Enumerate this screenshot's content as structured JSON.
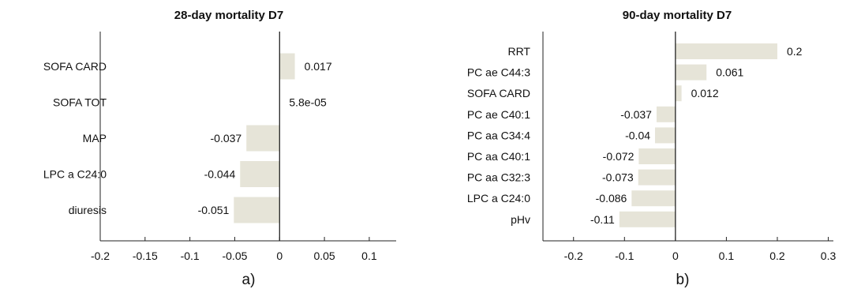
{
  "chart_data": [
    {
      "type": "bar",
      "orientation": "horizontal",
      "title": "28-day mortality D7",
      "panel_label": "a)",
      "categories": [
        "SOFA CARD",
        "SOFA TOT",
        "MAP",
        "LPC a C24:0",
        "diuresis"
      ],
      "values": [
        0.017,
        5.8e-05,
        -0.037,
        -0.044,
        -0.051
      ],
      "value_labels": [
        "0.017",
        "5.8e-05",
        "-0.037",
        "-0.044",
        "-0.051"
      ],
      "xlim": [
        -0.2,
        0.13
      ],
      "xticks": [
        -0.2,
        -0.15,
        -0.1,
        -0.05,
        0,
        0.05,
        0.1
      ],
      "xtick_labels": [
        "-0.2",
        "-0.15",
        "-0.1",
        "-0.05",
        "0",
        "0.05",
        "0.1"
      ],
      "bar_color": "#e6e4d8",
      "grid": false
    },
    {
      "type": "bar",
      "orientation": "horizontal",
      "title": "90-day mortality D7",
      "panel_label": "b)",
      "categories": [
        "RRT",
        "PC ae C44:3",
        "SOFA CARD",
        "PC ae C40:1",
        "PC aa C34:4",
        "PC aa C40:1",
        "PC aa C32:3",
        "LPC a C24:0",
        "pHv"
      ],
      "values": [
        0.2,
        0.061,
        0.012,
        -0.037,
        -0.04,
        -0.072,
        -0.073,
        -0.086,
        -0.11
      ],
      "value_labels": [
        "0.2",
        "0.061",
        "0.012",
        "-0.037",
        "-0.04",
        "-0.072",
        "-0.073",
        "-0.086",
        "-0.11"
      ],
      "xlim": [
        -0.26,
        0.31
      ],
      "xticks": [
        -0.2,
        -0.1,
        0,
        0.1,
        0.2,
        0.3
      ],
      "xtick_labels": [
        "-0.2",
        "-0.1",
        "0",
        "0.1",
        "0.2",
        "0.3"
      ],
      "bar_color": "#e6e4d8",
      "grid": false
    }
  ]
}
